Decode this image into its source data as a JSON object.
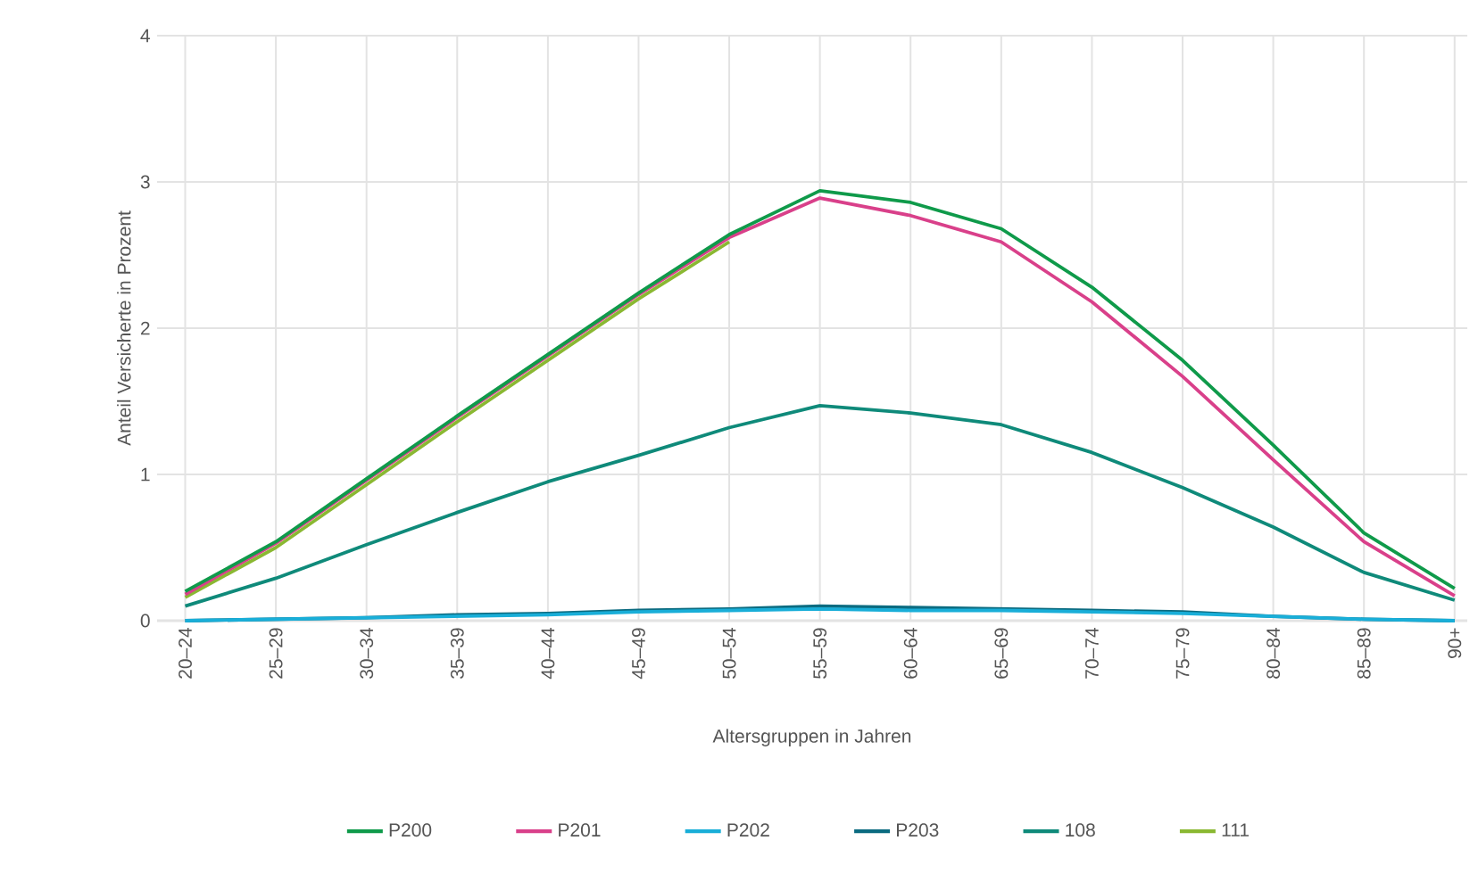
{
  "chart_data": {
    "type": "line",
    "xlabel": "Altersgruppen in Jahren",
    "ylabel": "Anteil Versicherte in Prozent",
    "categories": [
      "20–24",
      "25–29",
      "30–34",
      "35–39",
      "40–44",
      "45–49",
      "50–54",
      "55–59",
      "60–64",
      "65–69",
      "70–74",
      "75–79",
      "80–84",
      "85–89",
      "90+"
    ],
    "series": [
      {
        "name": "P200",
        "color": "#0f9a4a",
        "values": [
          0.2,
          0.54,
          0.97,
          1.4,
          1.82,
          2.24,
          2.64,
          2.94,
          2.86,
          2.68,
          2.28,
          1.78,
          1.2,
          0.6,
          0.22
        ]
      },
      {
        "name": "P201",
        "color": "#d9408a",
        "values": [
          0.18,
          0.53,
          0.96,
          1.39,
          1.81,
          2.23,
          2.62,
          2.89,
          2.77,
          2.59,
          2.18,
          1.67,
          1.1,
          0.54,
          0.17
        ]
      },
      {
        "name": "P202",
        "color": "#19aed8",
        "values": [
          0,
          0.01,
          0.02,
          0.03,
          0.04,
          0.06,
          0.07,
          0.08,
          0.07,
          0.07,
          0.06,
          0.05,
          0.03,
          0.01,
          0
        ]
      },
      {
        "name": "P203",
        "color": "#0b6b80",
        "values": [
          0,
          0.01,
          0.02,
          0.04,
          0.05,
          0.07,
          0.08,
          0.1,
          0.09,
          0.08,
          0.07,
          0.06,
          0.03,
          0.01,
          0
        ]
      },
      {
        "name": "108",
        "color": "#0f8a7a",
        "values": [
          0.1,
          0.29,
          0.52,
          0.74,
          0.95,
          1.13,
          1.32,
          1.47,
          1.42,
          1.34,
          1.15,
          0.91,
          0.64,
          0.33,
          0.14
        ]
      },
      {
        "name": "111",
        "color": "#8ab832",
        "values": [
          0.16,
          0.5,
          0.93,
          1.36,
          1.78,
          2.2,
          2.59,
          null,
          null,
          null,
          null,
          null,
          null,
          null,
          null
        ]
      }
    ],
    "ylim": [
      0,
      4
    ],
    "yticks": [
      0,
      1,
      2,
      3,
      4
    ],
    "grid": true,
    "legend": "bottom",
    "marker": "none",
    "line_style": "solid"
  }
}
